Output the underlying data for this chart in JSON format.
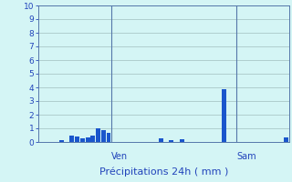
{
  "title": "Précipitations 24h ( mm )",
  "background_color": "#d4f5f5",
  "bar_color": "#1a56cc",
  "grid_color": "#aac8c8",
  "axis_color": "#5577aa",
  "text_color": "#2244bb",
  "ylim": [
    0,
    10
  ],
  "yticks": [
    0,
    1,
    2,
    3,
    4,
    5,
    6,
    7,
    8,
    9,
    10
  ],
  "num_bars": 48,
  "bar_values": [
    0,
    0,
    0,
    0,
    0.15,
    0,
    0.5,
    0.4,
    0.25,
    0.35,
    0.45,
    1.0,
    0.85,
    0.65,
    0,
    0,
    0,
    0,
    0,
    0,
    0,
    0,
    0,
    0.3,
    0,
    0.15,
    0,
    0.2,
    0,
    0,
    0,
    0,
    0,
    0,
    0,
    3.9,
    0,
    0,
    0,
    0,
    0,
    0,
    0,
    0,
    0,
    0,
    0,
    0.35
  ],
  "vline_positions": [
    13.5,
    37.5
  ],
  "vline_labels": [
    "Ven",
    "Sam"
  ],
  "tick_fontsize": 6.5,
  "label_fontsize": 7.0,
  "xlabel_fontsize": 8.0
}
